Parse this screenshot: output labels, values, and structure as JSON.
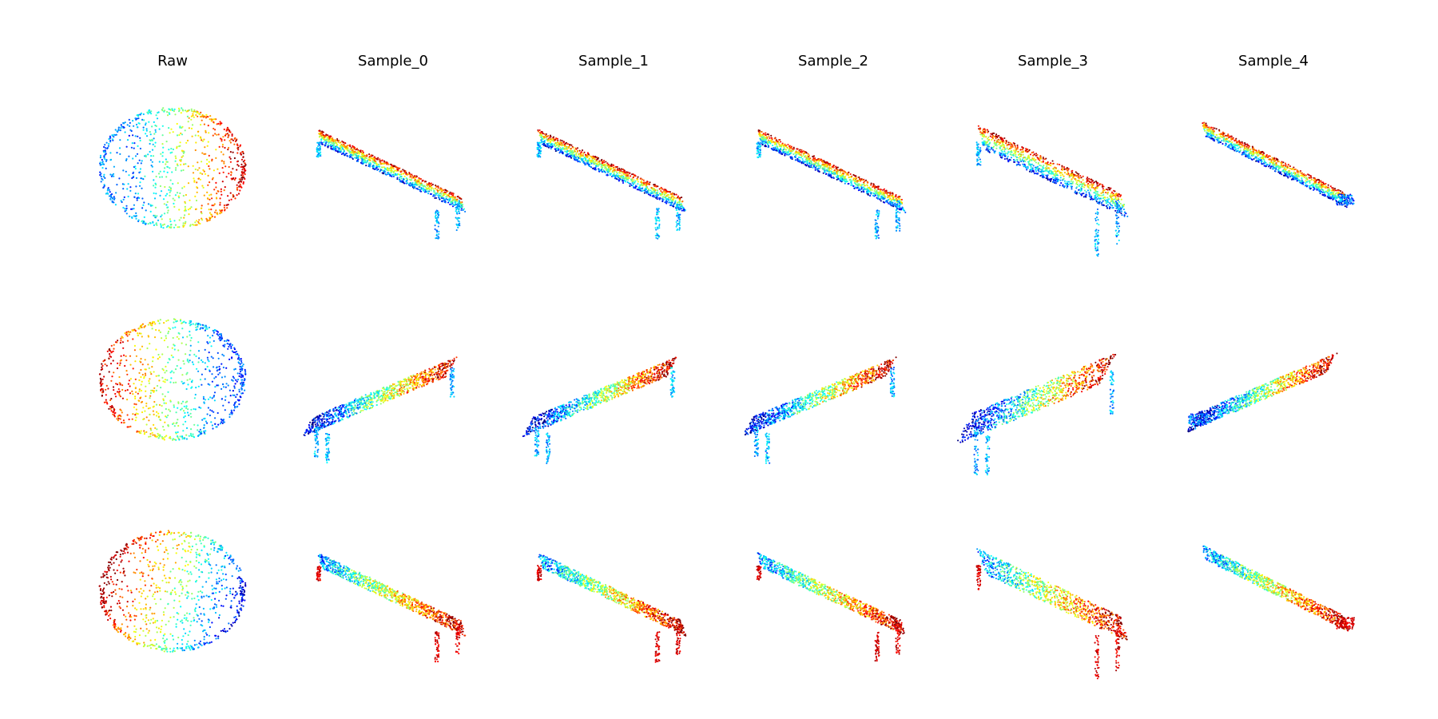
{
  "figure": {
    "columns": [
      {
        "title": "Raw",
        "kind": "sphere"
      },
      {
        "title": "Sample_0",
        "kind": "bench"
      },
      {
        "title": "Sample_1",
        "kind": "bench"
      },
      {
        "title": "Sample_2",
        "kind": "bench"
      },
      {
        "title": "Sample_3",
        "kind": "bench"
      },
      {
        "title": "Sample_4",
        "kind": "bench"
      }
    ],
    "rows": [
      {
        "view": "bench-descending-right"
      },
      {
        "view": "bench-ascending-right"
      },
      {
        "view": "bench-descending-right-alt"
      }
    ],
    "colormap": "jet",
    "point_color_ramp": [
      "#00007f",
      "#0000ff",
      "#0080ff",
      "#00ffff",
      "#80ff80",
      "#ffff00",
      "#ff8000",
      "#ff0000",
      "#7f0000"
    ]
  }
}
